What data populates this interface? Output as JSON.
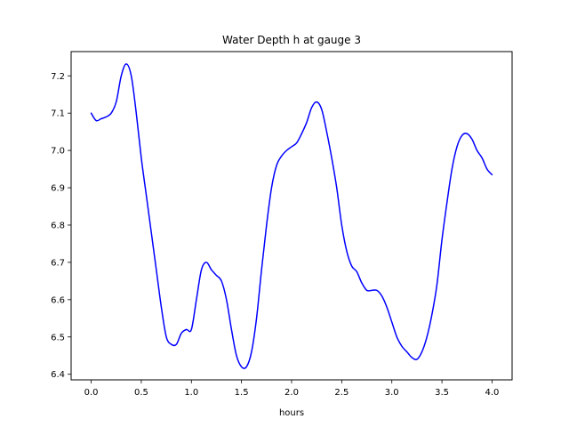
{
  "chart_data": {
    "type": "line",
    "title": "Water Depth h at gauge 3",
    "xlabel": "hours",
    "ylabel": "",
    "xlim": [
      -0.2,
      4.2
    ],
    "ylim": [
      6.385,
      7.265
    ],
    "xticks": [
      "0.0",
      "0.5",
      "1.0",
      "1.5",
      "2.0",
      "2.5",
      "3.0",
      "3.5",
      "4.0"
    ],
    "yticks": [
      "6.4",
      "6.5",
      "6.6",
      "6.7",
      "6.8",
      "6.9",
      "7.0",
      "7.1",
      "7.2"
    ],
    "grid": false,
    "legend": "none",
    "series": [
      {
        "color": "#0000ff",
        "x": [
          0.0,
          0.05,
          0.1,
          0.15,
          0.2,
          0.25,
          0.3,
          0.35,
          0.4,
          0.45,
          0.5,
          0.55,
          0.6,
          0.65,
          0.7,
          0.75,
          0.8,
          0.85,
          0.9,
          0.95,
          1.0,
          1.05,
          1.1,
          1.15,
          1.2,
          1.25,
          1.3,
          1.35,
          1.4,
          1.45,
          1.5,
          1.55,
          1.6,
          1.65,
          1.7,
          1.75,
          1.8,
          1.85,
          1.9,
          1.95,
          2.0,
          2.05,
          2.1,
          2.15,
          2.2,
          2.25,
          2.3,
          2.35,
          2.4,
          2.45,
          2.5,
          2.55,
          2.6,
          2.65,
          2.7,
          2.75,
          2.8,
          2.85,
          2.9,
          2.95,
          3.0,
          3.05,
          3.1,
          3.15,
          3.2,
          3.25,
          3.3,
          3.35,
          3.4,
          3.45,
          3.5,
          3.55,
          3.6,
          3.65,
          3.7,
          3.75,
          3.8,
          3.85,
          3.9,
          3.95,
          4.0
        ],
        "y": [
          7.1,
          7.08,
          7.085,
          7.09,
          7.1,
          7.13,
          7.2,
          7.232,
          7.2,
          7.1,
          6.98,
          6.88,
          6.78,
          6.68,
          6.58,
          6.5,
          6.48,
          6.48,
          6.51,
          6.52,
          6.52,
          6.6,
          6.68,
          6.7,
          6.68,
          6.665,
          6.65,
          6.6,
          6.52,
          6.45,
          6.42,
          6.42,
          6.46,
          6.55,
          6.68,
          6.8,
          6.9,
          6.96,
          6.985,
          7.0,
          7.01,
          7.02,
          7.045,
          7.075,
          7.115,
          7.13,
          7.11,
          7.05,
          6.98,
          6.9,
          6.8,
          6.73,
          6.69,
          6.675,
          6.645,
          6.625,
          6.625,
          6.625,
          6.61,
          6.58,
          6.54,
          6.5,
          6.475,
          6.46,
          6.445,
          6.44,
          6.46,
          6.5,
          6.56,
          6.64,
          6.76,
          6.86,
          6.95,
          7.01,
          7.04,
          7.045,
          7.03,
          7.0,
          6.98,
          6.95,
          6.935
        ]
      }
    ]
  }
}
